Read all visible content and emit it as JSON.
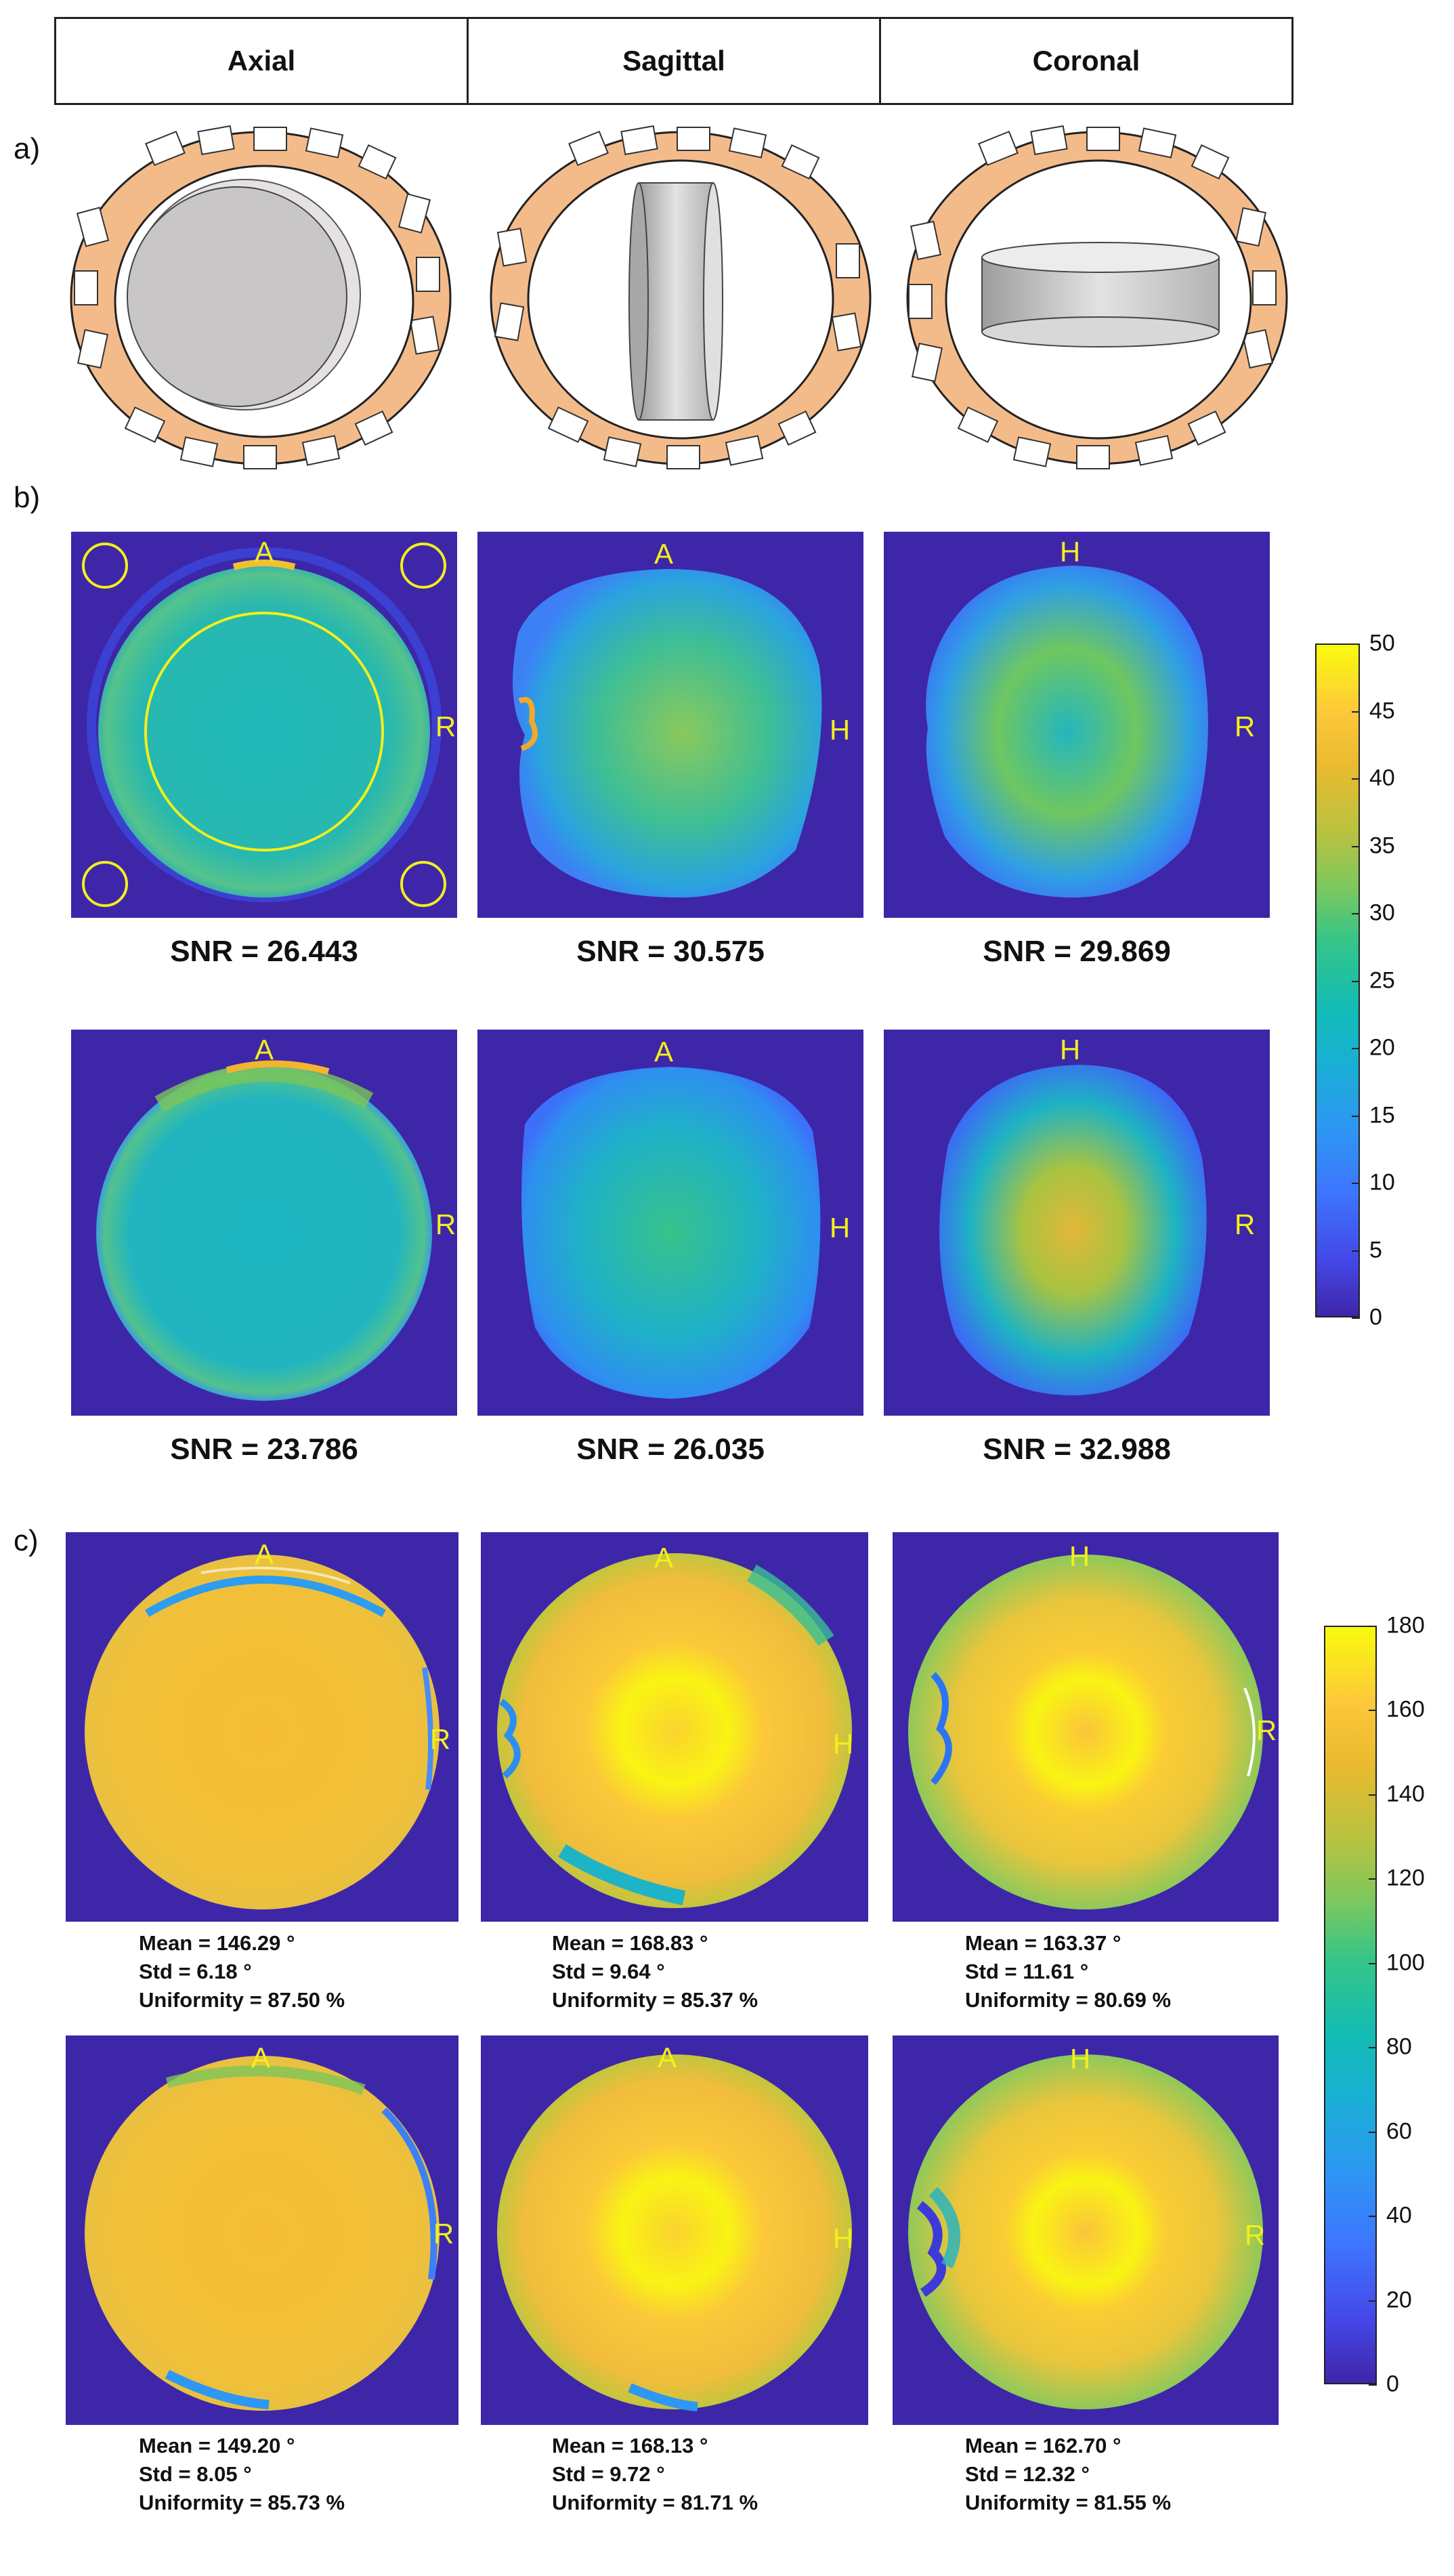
{
  "header": {
    "columns": [
      "Axial",
      "Sagittal",
      "Coronal"
    ]
  },
  "panels": {
    "a": "a)",
    "b": "b)",
    "c": "c)"
  },
  "illustrations": [
    {
      "name": "axial-coil-phantom",
      "phantom": "disc facing viewer"
    },
    {
      "name": "sagittal-coil-phantom",
      "phantom": "disc on edge, vertical"
    },
    {
      "name": "coronal-coil-phantom",
      "phantom": "disc lying flat"
    }
  ],
  "orientation_labels": {
    "axial": {
      "top": "A",
      "right": "R"
    },
    "sagittal": {
      "top": "A",
      "right": "H"
    },
    "coronal": {
      "top": "H",
      "right": "R"
    }
  },
  "snr": {
    "row1": [
      "SNR = 26.443",
      "SNR = 30.575",
      "SNR = 29.869"
    ],
    "row2": [
      "SNR = 23.786",
      "SNR = 26.035",
      "SNR = 32.988"
    ]
  },
  "flip_stats": {
    "row1": [
      {
        "mean": "Mean = 146.29 °",
        "std": "Std = 6.18 °",
        "uniformity": "Uniformity = 87.50 %"
      },
      {
        "mean": "Mean = 168.83 °",
        "std": "Std = 9.64 °",
        "uniformity": "Uniformity = 85.37 %"
      },
      {
        "mean": "Mean = 163.37 °",
        "std": "Std = 11.61 °",
        "uniformity": "Uniformity = 80.69 %"
      }
    ],
    "row2": [
      {
        "mean": "Mean = 149.20 °",
        "std": "Std = 8.05 °",
        "uniformity": "Uniformity = 85.73 %"
      },
      {
        "mean": "Mean = 168.13 °",
        "std": "Std = 9.72 °",
        "uniformity": "Uniformity = 81.71 %"
      },
      {
        "mean": "Mean = 162.70 °",
        "std": "Std = 12.32 °",
        "uniformity": "Uniformity = 81.55 %"
      }
    ]
  },
  "colorbars": {
    "snr": {
      "ticks": [
        "50",
        "45",
        "40",
        "35",
        "30",
        "25",
        "20",
        "15",
        "10",
        "5",
        "0"
      ]
    },
    "flip": {
      "ticks": [
        "180",
        "160",
        "140",
        "120",
        "100",
        "80",
        "60",
        "40",
        "20",
        "0"
      ]
    }
  },
  "colors": {
    "background": "#3e26a8",
    "label": "#f2ef1c",
    "ring_fill": "#f4bb8a"
  }
}
